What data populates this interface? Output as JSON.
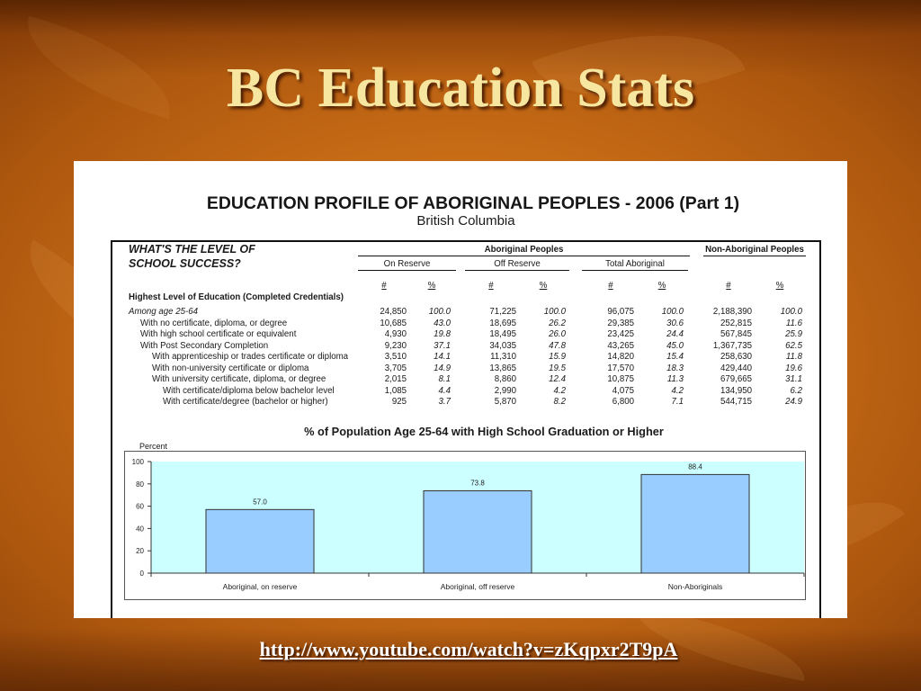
{
  "slide": {
    "title": "BC Education Stats",
    "link": "http://www.youtube.com/watch?v=zKqpxr2T9pA"
  },
  "profile": {
    "title": "EDUCATION PROFILE OF ABORIGINAL PEOPLES - 2006 (Part 1)",
    "subtitle": "British Columbia",
    "question_line1": "WHAT'S THE LEVEL OF",
    "question_line2": "SCHOOL SUCCESS?",
    "aboriginal_header": "Aboriginal Peoples",
    "non_aboriginal_header": "Non-Aboriginal Peoples",
    "sub_headers": [
      "On Reserve",
      "Off Reserve",
      "Total Aboriginal"
    ],
    "column_headers": [
      "#",
      "%",
      "#",
      "%",
      "#",
      "%",
      "#",
      "%"
    ],
    "section_title": "Highest Level of Education (Completed Credentials)",
    "rows": [
      {
        "label": "Among age 25-64",
        "values": [
          "24,850",
          "100.0",
          "71,225",
          "100.0",
          "96,075",
          "100.0",
          "2,188,390",
          "100.0"
        ]
      },
      {
        "label": "With no certificate, diploma, or degree",
        "values": [
          "10,685",
          "43.0",
          "18,695",
          "26.2",
          "29,385",
          "30.6",
          "252,815",
          "11.6"
        ]
      },
      {
        "label": "With high school certificate or equivalent",
        "values": [
          "4,930",
          "19.8",
          "18,495",
          "26.0",
          "23,425",
          "24.4",
          "567,845",
          "25.9"
        ]
      },
      {
        "label": "With Post Secondary Completion",
        "values": [
          "9,230",
          "37.1",
          "34,035",
          "47.8",
          "43,265",
          "45.0",
          "1,367,735",
          "62.5"
        ]
      },
      {
        "label": "With apprenticeship or trades certificate or diploma",
        "values": [
          "3,510",
          "14.1",
          "11,310",
          "15.9",
          "14,820",
          "15.4",
          "258,630",
          "11.8"
        ]
      },
      {
        "label": "With non-university certificate or diploma",
        "values": [
          "3,705",
          "14.9",
          "13,865",
          "19.5",
          "17,570",
          "18.3",
          "429,440",
          "19.6"
        ]
      },
      {
        "label": "With university certificate, diploma, or degree",
        "values": [
          "2,015",
          "8.1",
          "8,860",
          "12.4",
          "10,875",
          "11.3",
          "679,665",
          "31.1"
        ]
      },
      {
        "label": "With certificate/diploma below bachelor level",
        "values": [
          "1,085",
          "4.4",
          "2,990",
          "4.2",
          "4,075",
          "4.2",
          "134,950",
          "6.2"
        ]
      },
      {
        "label": "With certificate/degree (bachelor or higher)",
        "values": [
          "925",
          "3.7",
          "5,870",
          "8.2",
          "6,800",
          "7.1",
          "544,715",
          "24.9"
        ]
      }
    ]
  },
  "chart_data": {
    "type": "bar",
    "title": "% of Population Age 25-64 with High School Graduation or Higher",
    "ylabel": "Percent",
    "categories": [
      "Aboriginal, on reserve",
      "Aboriginal, off reserve",
      "Non-Aboriginals"
    ],
    "values": [
      57.0,
      73.8,
      88.4
    ],
    "data_labels": [
      "57.0",
      "73.8",
      "88.4"
    ],
    "ylim": [
      0,
      100
    ],
    "yticks": [
      0,
      20,
      40,
      60,
      80,
      100
    ],
    "grid": false,
    "colors": {
      "bar": "#99ccff",
      "bar_outline": "#333333",
      "plot_background": "#ccffff"
    }
  }
}
